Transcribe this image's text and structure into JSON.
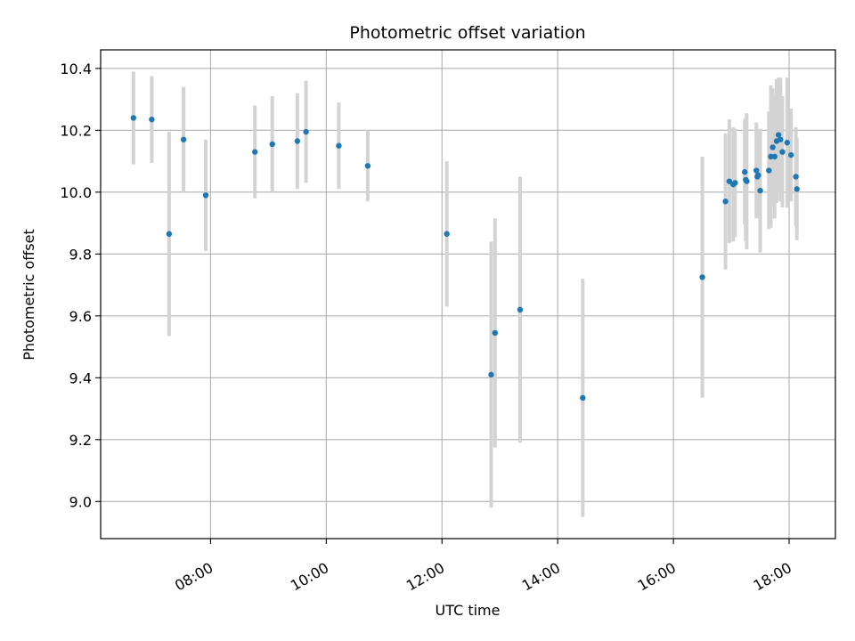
{
  "chart_data": {
    "type": "scatter",
    "title": "Photometric offset variation",
    "xlabel": "UTC time",
    "ylabel": "Photometric offset",
    "x_ticks": [
      "08:00",
      "10:00",
      "12:00",
      "14:00",
      "16:00",
      "18:00"
    ],
    "y_ticks": [
      "9.0",
      "9.2",
      "9.4",
      "9.6",
      "9.8",
      "10.0",
      "10.2",
      "10.4"
    ],
    "xlim": [
      "06:06",
      "18:48"
    ],
    "ylim": [
      8.88,
      10.46
    ],
    "grid": true,
    "marker_color": "#1f77b4",
    "errorbar_color": "#d3d3d3",
    "series": [
      {
        "points": [
          {
            "x": "06:40",
            "y": 10.24,
            "err": 0.15
          },
          {
            "x": "06:59",
            "y": 10.235,
            "err": 0.14
          },
          {
            "x": "07:17",
            "y": 9.865,
            "err": 0.33
          },
          {
            "x": "07:32",
            "y": 10.17,
            "err": 0.17
          },
          {
            "x": "07:55",
            "y": 9.99,
            "err": 0.18
          },
          {
            "x": "08:46",
            "y": 10.13,
            "err": 0.15
          },
          {
            "x": "09:04",
            "y": 10.155,
            "err": 0.155
          },
          {
            "x": "09:30",
            "y": 10.165,
            "err": 0.155
          },
          {
            "x": "09:39",
            "y": 10.195,
            "err": 0.165
          },
          {
            "x": "10:13",
            "y": 10.15,
            "err": 0.14
          },
          {
            "x": "10:43",
            "y": 10.085,
            "err": 0.115
          },
          {
            "x": "12:05",
            "y": 9.865,
            "err": 0.235
          },
          {
            "x": "12:51",
            "y": 9.41,
            "err": 0.43
          },
          {
            "x": "12:55",
            "y": 9.545,
            "err": 0.37
          },
          {
            "x": "13:21",
            "y": 9.62,
            "err": 0.43
          },
          {
            "x": "14:26",
            "y": 9.335,
            "err": 0.385
          },
          {
            "x": "16:30",
            "y": 9.725,
            "err": 0.39
          },
          {
            "x": "16:54",
            "y": 9.97,
            "err": 0.22
          },
          {
            "x": "16:58",
            "y": 10.035,
            "err": 0.2
          },
          {
            "x": "17:02",
            "y": 10.025,
            "err": 0.185
          },
          {
            "x": "17:04",
            "y": 10.03,
            "err": 0.175
          },
          {
            "x": "17:14",
            "y": 10.065,
            "err": 0.17
          },
          {
            "x": "17:15",
            "y": 10.04,
            "err": 0.2
          },
          {
            "x": "17:16",
            "y": 10.035,
            "err": 0.22
          },
          {
            "x": "17:26",
            "y": 10.07,
            "err": 0.155
          },
          {
            "x": "17:27",
            "y": 10.05,
            "err": 0.13
          },
          {
            "x": "17:28",
            "y": 10.055,
            "err": 0.14
          },
          {
            "x": "17:30",
            "y": 10.005,
            "err": 0.2
          },
          {
            "x": "17:39",
            "y": 10.07,
            "err": 0.19
          },
          {
            "x": "17:41",
            "y": 10.115,
            "err": 0.23
          },
          {
            "x": "17:43",
            "y": 10.145,
            "err": 0.19
          },
          {
            "x": "17:45",
            "y": 10.115,
            "err": 0.2
          },
          {
            "x": "17:47",
            "y": 10.165,
            "err": 0.2
          },
          {
            "x": "17:49",
            "y": 10.185,
            "err": 0.185
          },
          {
            "x": "17:51",
            "y": 10.17,
            "err": 0.2
          },
          {
            "x": "17:53",
            "y": 10.13,
            "err": 0.18
          },
          {
            "x": "17:58",
            "y": 10.16,
            "err": 0.21
          },
          {
            "x": "18:02",
            "y": 10.12,
            "err": 0.15
          },
          {
            "x": "18:07",
            "y": 10.05,
            "err": 0.16
          },
          {
            "x": "18:08",
            "y": 10.01,
            "err": 0.165
          }
        ]
      }
    ]
  }
}
